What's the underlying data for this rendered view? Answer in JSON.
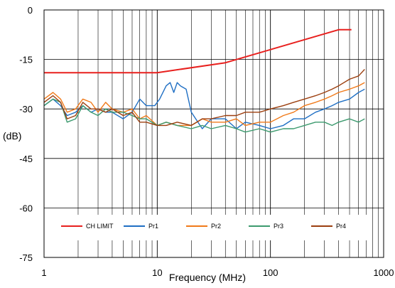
{
  "chart_data": {
    "type": "line",
    "title": "",
    "xlabel": "Frequency (MHz)",
    "ylabel": "(dB)",
    "xscale": "log",
    "xlim": [
      1,
      1000
    ],
    "ylim": [
      -75,
      0
    ],
    "x_ticks": [
      1,
      10,
      100,
      1000
    ],
    "x_tick_labels": [
      "1",
      "10",
      "100",
      "1000"
    ],
    "y_ticks": [
      0,
      -15,
      -30,
      -45,
      -60,
      -75
    ],
    "y_tick_labels": [
      "0",
      "-15",
      "-30",
      "-45",
      "-60",
      "-75"
    ],
    "grid": true,
    "legend_position": "bottom-inside",
    "series": [
      {
        "name": "CH LIMIT",
        "color": "#e8201e",
        "points": [
          [
            1,
            -19
          ],
          [
            10,
            -19
          ],
          [
            40,
            -16
          ],
          [
            400,
            -6
          ],
          [
            520,
            -6
          ]
        ]
      },
      {
        "name": "Pr1",
        "color": "#1f6fc4",
        "points": [
          [
            1,
            -29
          ],
          [
            1.2,
            -27
          ],
          [
            1.4,
            -29
          ],
          [
            1.6,
            -32
          ],
          [
            1.9,
            -31
          ],
          [
            2.2,
            -29
          ],
          [
            2.6,
            -31
          ],
          [
            3,
            -30
          ],
          [
            3.5,
            -31
          ],
          [
            4,
            -31
          ],
          [
            5,
            -33
          ],
          [
            6,
            -31
          ],
          [
            7,
            -27
          ],
          [
            8,
            -29
          ],
          [
            9.5,
            -29
          ],
          [
            10.5,
            -27
          ],
          [
            12,
            -23
          ],
          [
            13,
            -22
          ],
          [
            14,
            -25
          ],
          [
            15,
            -22
          ],
          [
            16,
            -23
          ],
          [
            18,
            -24
          ],
          [
            20,
            -31
          ],
          [
            25,
            -36
          ],
          [
            30,
            -33
          ],
          [
            40,
            -33
          ],
          [
            50,
            -36
          ],
          [
            60,
            -34
          ],
          [
            80,
            -35
          ],
          [
            100,
            -36
          ],
          [
            130,
            -35
          ],
          [
            160,
            -33
          ],
          [
            200,
            -33
          ],
          [
            250,
            -31
          ],
          [
            300,
            -30
          ],
          [
            350,
            -29
          ],
          [
            400,
            -28
          ],
          [
            500,
            -27
          ],
          [
            600,
            -25
          ],
          [
            680,
            -24
          ]
        ]
      },
      {
        "name": "Pr2",
        "color": "#f07a1a",
        "points": [
          [
            1,
            -27
          ],
          [
            1.2,
            -25
          ],
          [
            1.4,
            -27
          ],
          [
            1.6,
            -31
          ],
          [
            1.9,
            -30
          ],
          [
            2.2,
            -27
          ],
          [
            2.6,
            -28
          ],
          [
            3,
            -31
          ],
          [
            3.5,
            -28
          ],
          [
            4,
            -30
          ],
          [
            5,
            -31
          ],
          [
            6,
            -30
          ],
          [
            7,
            -33
          ],
          [
            8,
            -32
          ],
          [
            10,
            -35
          ],
          [
            12,
            -34
          ],
          [
            15,
            -35
          ],
          [
            20,
            -35
          ],
          [
            25,
            -33
          ],
          [
            30,
            -34
          ],
          [
            40,
            -34
          ],
          [
            50,
            -33
          ],
          [
            60,
            -35
          ],
          [
            80,
            -34
          ],
          [
            100,
            -34
          ],
          [
            130,
            -32
          ],
          [
            160,
            -31
          ],
          [
            200,
            -29
          ],
          [
            250,
            -28
          ],
          [
            300,
            -27
          ],
          [
            350,
            -26
          ],
          [
            400,
            -25
          ],
          [
            500,
            -24
          ],
          [
            600,
            -23
          ],
          [
            680,
            -22
          ]
        ]
      },
      {
        "name": "Pr3",
        "color": "#3c9a6e",
        "points": [
          [
            1,
            -29
          ],
          [
            1.2,
            -27
          ],
          [
            1.4,
            -28
          ],
          [
            1.6,
            -34
          ],
          [
            1.9,
            -33
          ],
          [
            2.2,
            -29
          ],
          [
            2.6,
            -31
          ],
          [
            3,
            -32
          ],
          [
            3.5,
            -30
          ],
          [
            4,
            -31
          ],
          [
            5,
            -31
          ],
          [
            6,
            -32
          ],
          [
            7,
            -33
          ],
          [
            8,
            -33
          ],
          [
            10,
            -35
          ],
          [
            12,
            -34
          ],
          [
            15,
            -35
          ],
          [
            20,
            -36
          ],
          [
            25,
            -35
          ],
          [
            30,
            -36
          ],
          [
            40,
            -35
          ],
          [
            50,
            -36
          ],
          [
            60,
            -37
          ],
          [
            80,
            -36
          ],
          [
            100,
            -37
          ],
          [
            130,
            -36
          ],
          [
            160,
            -36
          ],
          [
            200,
            -35
          ],
          [
            250,
            -34
          ],
          [
            300,
            -34
          ],
          [
            350,
            -35
          ],
          [
            400,
            -34
          ],
          [
            500,
            -33
          ],
          [
            600,
            -34
          ],
          [
            680,
            -33
          ]
        ]
      },
      {
        "name": "Pr4",
        "color": "#9c3f0f",
        "points": [
          [
            1,
            -28
          ],
          [
            1.2,
            -26
          ],
          [
            1.4,
            -28
          ],
          [
            1.6,
            -33
          ],
          [
            1.9,
            -32
          ],
          [
            2.2,
            -28
          ],
          [
            2.6,
            -30
          ],
          [
            3,
            -30
          ],
          [
            3.5,
            -31
          ],
          [
            4,
            -30
          ],
          [
            5,
            -32
          ],
          [
            6,
            -31
          ],
          [
            7,
            -34
          ],
          [
            8,
            -34
          ],
          [
            10,
            -35
          ],
          [
            12,
            -35
          ],
          [
            15,
            -34
          ],
          [
            20,
            -35
          ],
          [
            25,
            -33
          ],
          [
            30,
            -33
          ],
          [
            40,
            -32
          ],
          [
            50,
            -32
          ],
          [
            60,
            -31
          ],
          [
            80,
            -31
          ],
          [
            100,
            -30
          ],
          [
            130,
            -29
          ],
          [
            160,
            -28
          ],
          [
            200,
            -27
          ],
          [
            250,
            -26
          ],
          [
            300,
            -25
          ],
          [
            350,
            -24
          ],
          [
            400,
            -23
          ],
          [
            500,
            -21
          ],
          [
            600,
            -20
          ],
          [
            680,
            -18
          ]
        ]
      }
    ]
  }
}
